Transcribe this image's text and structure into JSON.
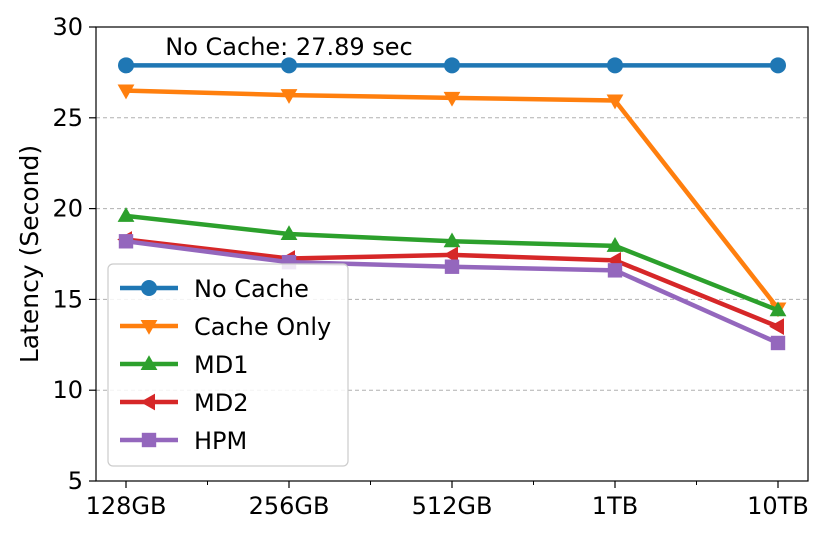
{
  "chart_data": {
    "type": "line",
    "title": "",
    "xlabel": "",
    "ylabel": "Latency (Second)",
    "categories": [
      "128GB",
      "256GB",
      "512GB",
      "1TB",
      "10TB"
    ],
    "ylim": [
      5,
      30
    ],
    "yticks": [
      5,
      10,
      15,
      20,
      25,
      30
    ],
    "grid": {
      "y": true,
      "x": false,
      "style": "dashed"
    },
    "legend_position": "lower-left",
    "annotations": [
      {
        "text": "No Cache: 27.89 sec",
        "x": "256GB",
        "y": 28.9
      }
    ],
    "series": [
      {
        "name": "No Cache",
        "marker": "circle",
        "color": "#1f77b4",
        "values": [
          27.89,
          27.89,
          27.89,
          27.89,
          27.89
        ]
      },
      {
        "name": "Cache Only",
        "marker": "triangle-down",
        "color": "#ff7f0e",
        "values": [
          26.5,
          26.25,
          26.1,
          25.95,
          14.5
        ]
      },
      {
        "name": "MD1",
        "marker": "triangle-up",
        "color": "#2ca02c",
        "values": [
          19.6,
          18.6,
          18.2,
          17.95,
          14.4
        ]
      },
      {
        "name": "MD2",
        "marker": "triangle-left",
        "color": "#d62728",
        "values": [
          18.3,
          17.25,
          17.45,
          17.15,
          13.5
        ]
      },
      {
        "name": "HPM",
        "marker": "square",
        "color": "#9467bd",
        "values": [
          18.2,
          17.05,
          16.8,
          16.6,
          12.6
        ]
      }
    ]
  }
}
